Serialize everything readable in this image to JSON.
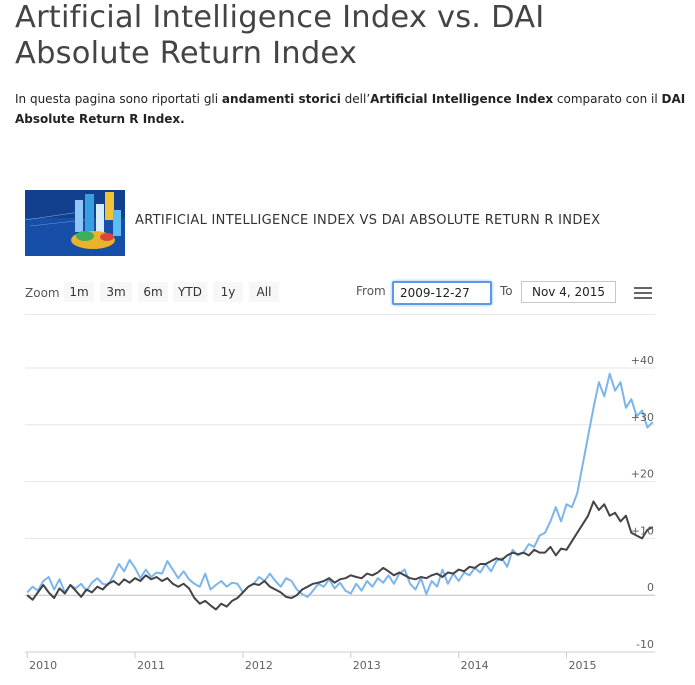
{
  "page": {
    "title": "Artificial Intelligence Index vs. DAI Absolute Return Index",
    "intro": {
      "p1": "In questa pagina sono riportati gli ",
      "b1": "andamenti storici",
      "p2": " dell’",
      "b2": "Artificial Intelligence Index",
      "p3": " comparato con il ",
      "b3": "DAI Absolute Return R Index."
    }
  },
  "chart_header": {
    "title": "ARTIFICIAL INTELLIGENCE INDEX VS DAI ABSOLUTE RETURN R INDEX",
    "logo_icon": "finance-chart-thumbnail"
  },
  "toolbar": {
    "zoom_label": "Zoom",
    "zoom_buttons": [
      "1m",
      "3m",
      "6m",
      "YTD",
      "1y",
      "All"
    ],
    "from_label": "From",
    "from_value": "2009-12-27",
    "to_label": "To",
    "to_value": "Nov 4, 2015",
    "menu_icon": "hamburger-menu-icon"
  },
  "chart_data": {
    "type": "line",
    "title": "ARTIFICIAL INTELLIGENCE INDEX VS DAI ABSOLUTE RETURN R INDEX",
    "xlabel": "",
    "ylabel": "",
    "xlim": [
      2009.98,
      2015.82
    ],
    "ylim": [
      -10,
      40
    ],
    "x_ticks": [
      "2010",
      "2011",
      "2012",
      "2013",
      "2014",
      "2015"
    ],
    "y_ticks": [
      "+40",
      "+30",
      "+20",
      "+10",
      "0",
      "-10"
    ],
    "y_tick_values": [
      40,
      30,
      20,
      10,
      0,
      -10
    ],
    "grid": true,
    "legend": "none",
    "colors": {
      "series_blue": "#7cb5ec",
      "series_dark": "#434348",
      "grid": "#e6e6e6",
      "axis": "#cccccc"
    },
    "series": [
      {
        "color": "#7cb5ec",
        "x": [
          2010.0,
          2010.05,
          2010.1,
          2010.15,
          2010.2,
          2010.25,
          2010.3,
          2010.35,
          2010.4,
          2010.45,
          2010.5,
          2010.55,
          2010.6,
          2010.65,
          2010.7,
          2010.75,
          2010.8,
          2010.85,
          2010.9,
          2010.95,
          2011.0,
          2011.05,
          2011.1,
          2011.15,
          2011.2,
          2011.25,
          2011.3,
          2011.35,
          2011.4,
          2011.45,
          2011.5,
          2011.55,
          2011.6,
          2011.65,
          2011.7,
          2011.75,
          2011.8,
          2011.85,
          2011.9,
          2011.95,
          2012.0,
          2012.05,
          2012.1,
          2012.15,
          2012.2,
          2012.25,
          2012.3,
          2012.35,
          2012.4,
          2012.45,
          2012.5,
          2012.55,
          2012.6,
          2012.65,
          2012.7,
          2012.75,
          2012.8,
          2012.85,
          2012.9,
          2012.95,
          2013.0,
          2013.05,
          2013.1,
          2013.15,
          2013.2,
          2013.25,
          2013.3,
          2013.35,
          2013.4,
          2013.45,
          2013.5,
          2013.55,
          2013.6,
          2013.65,
          2013.7,
          2013.75,
          2013.8,
          2013.85,
          2013.9,
          2013.95,
          2014.0,
          2014.05,
          2014.1,
          2014.15,
          2014.2,
          2014.25,
          2014.3,
          2014.35,
          2014.4,
          2014.45,
          2014.5,
          2014.55,
          2014.6,
          2014.65,
          2014.7,
          2014.75,
          2014.8,
          2014.85,
          2014.9,
          2014.95,
          2015.0,
          2015.05,
          2015.1,
          2015.15,
          2015.2,
          2015.25,
          2015.3,
          2015.35,
          2015.4,
          2015.45,
          2015.5,
          2015.55,
          2015.6,
          2015.65,
          2015.7,
          2015.75,
          2015.8
        ],
        "values": [
          0.5,
          1.5,
          0.8,
          2.5,
          3.2,
          1.0,
          2.8,
          0.5,
          1.8,
          1.2,
          2.0,
          0.8,
          2.2,
          3.0,
          2.0,
          1.8,
          3.5,
          5.5,
          4.2,
          6.2,
          4.8,
          3.0,
          4.5,
          3.2,
          4.0,
          3.8,
          6.0,
          4.5,
          3.0,
          4.2,
          2.8,
          2.0,
          1.5,
          3.8,
          1.0,
          1.8,
          2.5,
          1.5,
          2.2,
          2.0,
          0.5,
          1.5,
          2.0,
          3.2,
          2.5,
          3.8,
          2.5,
          1.5,
          3.0,
          2.5,
          1.0,
          0.2,
          -0.3,
          0.8,
          2.0,
          1.5,
          2.8,
          1.2,
          2.2,
          0.8,
          0.3,
          2.0,
          0.8,
          2.5,
          1.5,
          3.0,
          2.2,
          3.5,
          2.0,
          3.8,
          4.5,
          2.0,
          1.0,
          3.0,
          0.2,
          2.5,
          1.5,
          4.5,
          2.0,
          3.8,
          2.5,
          4.0,
          3.5,
          4.8,
          4.0,
          5.5,
          4.2,
          6.0,
          6.5,
          5.0,
          8.0,
          7.0,
          7.5,
          9.0,
          8.5,
          10.5,
          11.0,
          13.0,
          15.5,
          13.0,
          16.0,
          15.5,
          18.0,
          23.0,
          28.0,
          33.0,
          37.5,
          35.0,
          39.0,
          36.0,
          37.5,
          33.0,
          34.5,
          31.5,
          32.5,
          29.5,
          30.5
        ]
      },
      {
        "color": "#434348",
        "x": [
          2010.0,
          2010.05,
          2010.1,
          2010.15,
          2010.2,
          2010.25,
          2010.3,
          2010.35,
          2010.4,
          2010.45,
          2010.5,
          2010.55,
          2010.6,
          2010.65,
          2010.7,
          2010.75,
          2010.8,
          2010.85,
          2010.9,
          2010.95,
          2011.0,
          2011.05,
          2011.1,
          2011.15,
          2011.2,
          2011.25,
          2011.3,
          2011.35,
          2011.4,
          2011.45,
          2011.5,
          2011.55,
          2011.6,
          2011.65,
          2011.7,
          2011.75,
          2011.8,
          2011.85,
          2011.9,
          2011.95,
          2012.0,
          2012.05,
          2012.1,
          2012.15,
          2012.2,
          2012.25,
          2012.3,
          2012.35,
          2012.4,
          2012.45,
          2012.5,
          2012.55,
          2012.6,
          2012.65,
          2012.7,
          2012.75,
          2012.8,
          2012.85,
          2012.9,
          2012.95,
          2013.0,
          2013.05,
          2013.1,
          2013.15,
          2013.2,
          2013.25,
          2013.3,
          2013.35,
          2013.4,
          2013.45,
          2013.5,
          2013.55,
          2013.6,
          2013.65,
          2013.7,
          2013.75,
          2013.8,
          2013.85,
          2013.9,
          2013.95,
          2014.0,
          2014.05,
          2014.1,
          2014.15,
          2014.2,
          2014.25,
          2014.3,
          2014.35,
          2014.4,
          2014.45,
          2014.5,
          2014.55,
          2014.6,
          2014.65,
          2014.7,
          2014.75,
          2014.8,
          2014.85,
          2014.9,
          2014.95,
          2015.0,
          2015.05,
          2015.1,
          2015.15,
          2015.2,
          2015.25,
          2015.3,
          2015.35,
          2015.4,
          2015.45,
          2015.5,
          2015.55,
          2015.6,
          2015.65,
          2015.7,
          2015.75,
          2015.8
        ],
        "values": [
          0.0,
          -0.8,
          0.5,
          1.8,
          0.5,
          -0.5,
          1.2,
          0.3,
          1.8,
          0.8,
          -0.3,
          1.0,
          0.5,
          1.5,
          1.0,
          2.0,
          2.5,
          1.8,
          2.8,
          2.2,
          3.0,
          2.5,
          3.5,
          2.8,
          3.2,
          2.5,
          3.0,
          2.0,
          1.5,
          2.0,
          1.2,
          -0.5,
          -1.5,
          -1.0,
          -1.8,
          -2.5,
          -1.5,
          -2.0,
          -1.0,
          -0.5,
          0.5,
          1.5,
          2.0,
          1.8,
          2.5,
          1.5,
          1.0,
          0.5,
          -0.3,
          -0.5,
          0.0,
          1.0,
          1.5,
          2.0,
          2.2,
          2.5,
          3.0,
          2.2,
          2.8,
          3.0,
          3.5,
          3.2,
          3.0,
          3.8,
          3.5,
          4.0,
          4.8,
          4.2,
          3.5,
          4.0,
          3.5,
          3.0,
          2.8,
          3.2,
          3.0,
          3.5,
          3.8,
          3.2,
          4.0,
          3.8,
          4.5,
          4.2,
          5.0,
          4.8,
          5.5,
          5.5,
          6.0,
          6.5,
          6.2,
          7.0,
          7.5,
          7.2,
          7.5,
          7.0,
          8.0,
          7.5,
          7.5,
          8.5,
          7.0,
          8.2,
          8.0,
          9.5,
          11.0,
          12.5,
          14.0,
          16.5,
          15.0,
          16.0,
          14.0,
          14.5,
          13.0,
          14.0,
          11.0,
          10.5,
          10.0,
          11.5,
          12.0
        ]
      }
    ]
  }
}
